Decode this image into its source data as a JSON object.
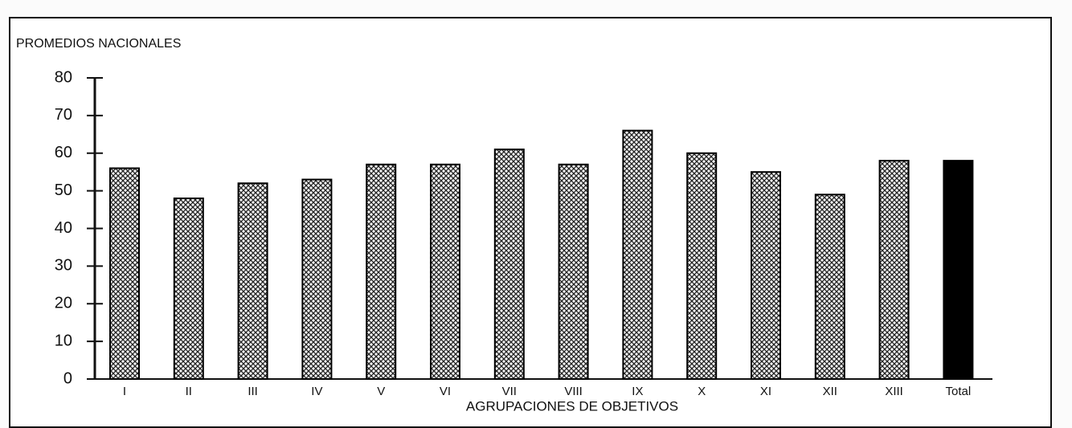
{
  "chart_data": {
    "type": "bar",
    "title": "PROMEDIOS NACIONALES",
    "x_label": "AGRUPACIONES DE OBJETIVOS",
    "categories": [
      "I",
      "II",
      "III",
      "IV",
      "V",
      "VI",
      "VII",
      "VIII",
      "IX",
      "X",
      "XI",
      "XII",
      "XIII",
      "Total"
    ],
    "values": [
      56,
      48,
      52,
      53,
      57,
      57,
      61,
      57,
      66,
      60,
      55,
      49,
      58,
      58
    ],
    "fill_pattern": "crosshatch",
    "color": "#000000",
    "last_bar_color": "#000000",
    "ylim": [
      0,
      80
    ],
    "yticks": [
      0,
      10,
      20,
      30,
      40,
      50,
      60,
      70,
      80
    ],
    "grid": false
  }
}
